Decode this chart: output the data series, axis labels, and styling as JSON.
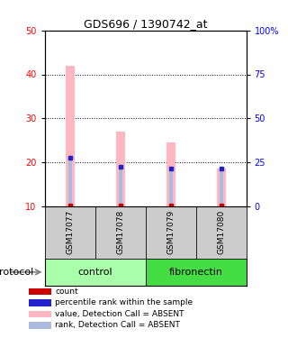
{
  "title": "GDS696 / 1390742_at",
  "samples": [
    "GSM17077",
    "GSM17078",
    "GSM17079",
    "GSM17080"
  ],
  "ylim_left": [
    10,
    50
  ],
  "ylim_right": [
    0,
    100
  ],
  "yticks_left": [
    10,
    20,
    30,
    40,
    50
  ],
  "yticks_right": [
    0,
    25,
    50,
    75,
    100
  ],
  "bar_values": [
    42.0,
    27.0,
    24.5,
    18.5
  ],
  "rank_values": [
    21.0,
    19.0,
    18.5,
    18.5
  ],
  "bar_base": 10,
  "bar_color_absent": "#FFB6C1",
  "rank_color_absent": "#AABBDD",
  "count_color": "#CC0000",
  "rank_dot_color": "#2222CC",
  "group_colors": {
    "control": "#AAFFAA",
    "fibronectin": "#44DD44"
  },
  "sample_bg_color": "#CCCCCC",
  "legend_items": [
    {
      "color": "#CC0000",
      "label": "count"
    },
    {
      "color": "#2222CC",
      "label": "percentile rank within the sample"
    },
    {
      "color": "#FFB6C1",
      "label": "value, Detection Call = ABSENT"
    },
    {
      "color": "#AABBDD",
      "label": "rank, Detection Call = ABSENT"
    }
  ],
  "protocol_label": "protocol",
  "groups_ranges": [
    [
      "control",
      0,
      2
    ],
    [
      "fibronectin",
      2,
      4
    ]
  ]
}
